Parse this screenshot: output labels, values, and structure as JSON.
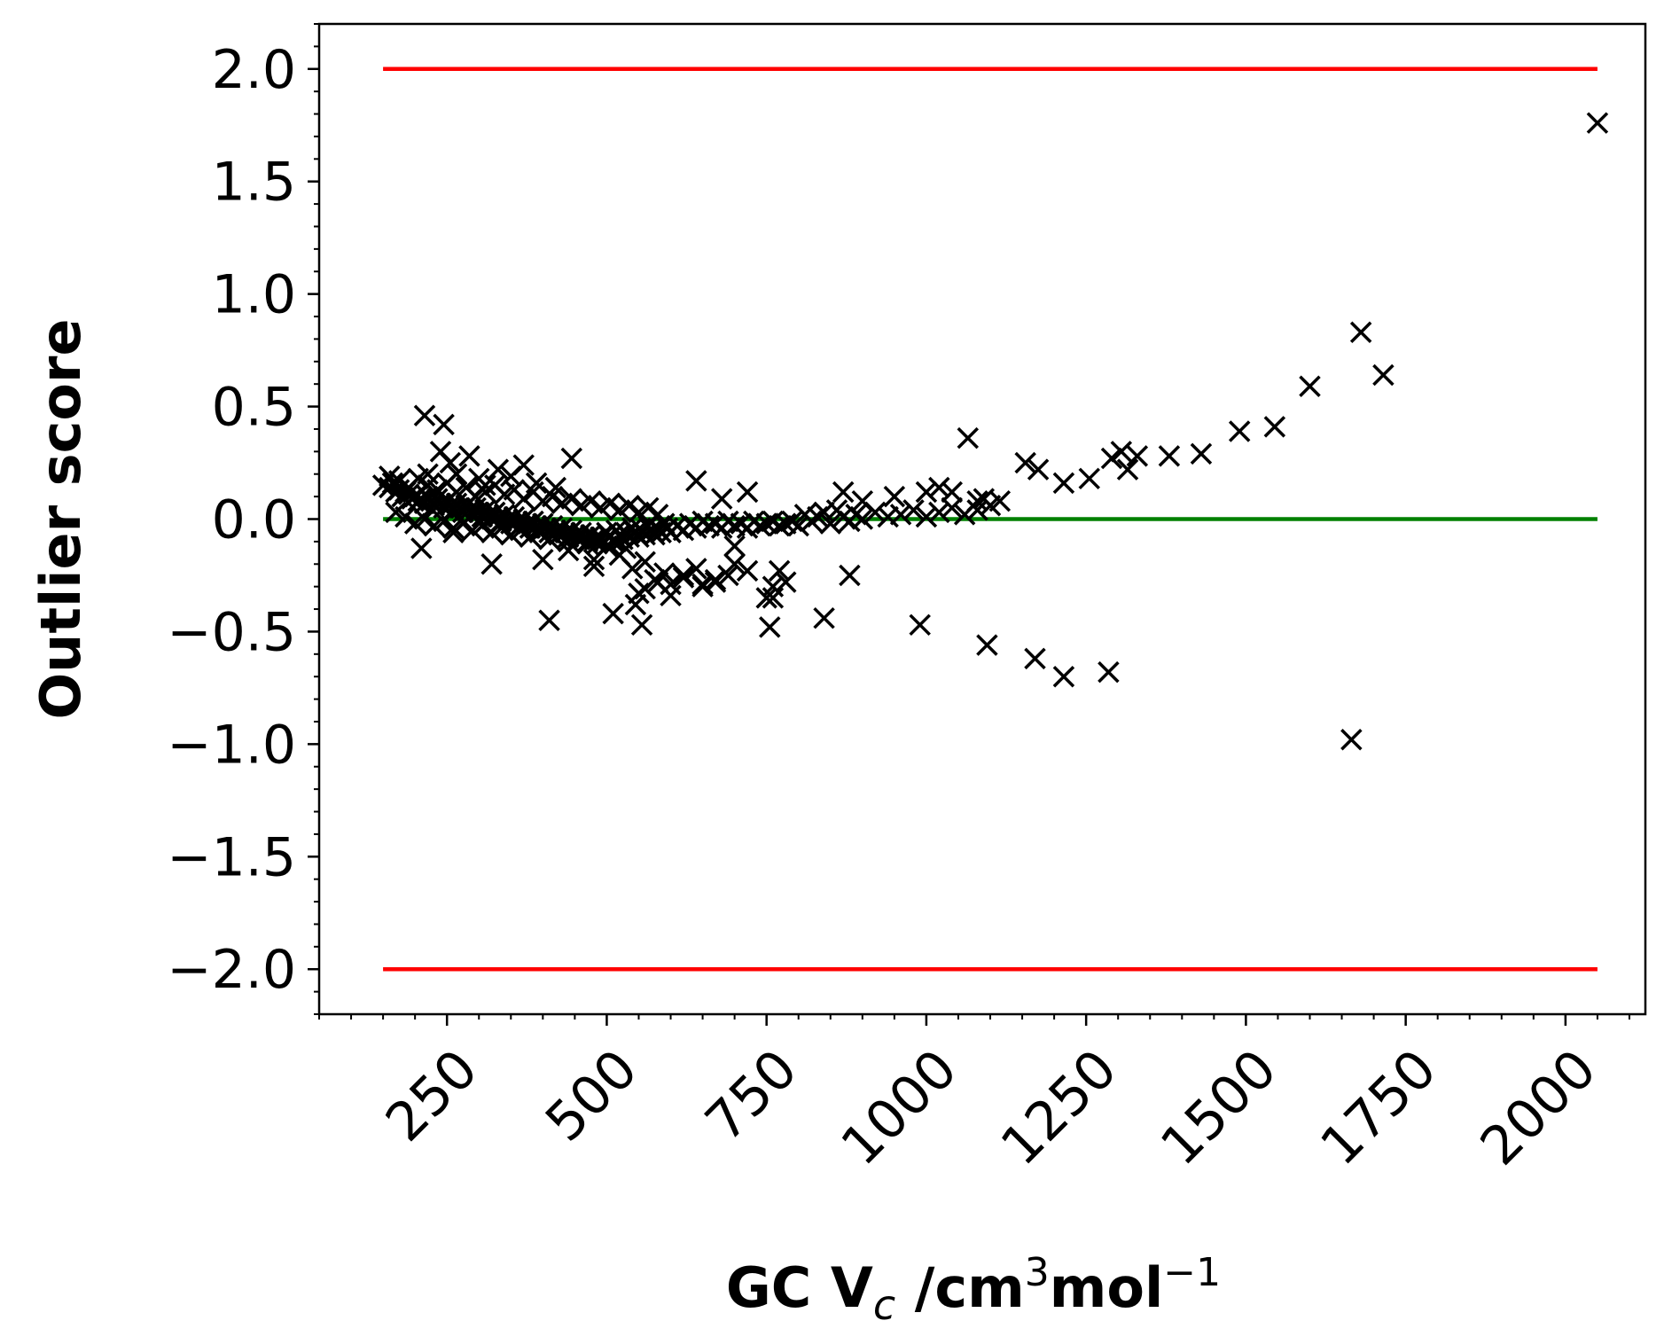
{
  "chart_data": {
    "type": "scatter",
    "xlabel": {
      "prefix": "GC V",
      "subscript": "c",
      "middle": " /cm",
      "sup1": "3",
      "unit2": "mol",
      "sup2": "−1"
    },
    "ylabel": "Outlier score",
    "xlim": [
      50,
      2125
    ],
    "ylim": [
      -2.2,
      2.2
    ],
    "x_ticks": [
      250,
      500,
      750,
      1000,
      1250,
      1500,
      1750,
      2000
    ],
    "x_tick_labels": [
      "250",
      "500",
      "750",
      "1000",
      "1250",
      "1500",
      "1750",
      "2000"
    ],
    "x_minor_step": 50,
    "y_ticks": [
      -2.0,
      -1.5,
      -1.0,
      -0.5,
      0.0,
      0.5,
      1.0,
      1.5,
      2.0
    ],
    "y_tick_labels": [
      "−2.0",
      "−1.5",
      "−1.0",
      "−0.5",
      "0.0",
      "0.5",
      "1.0",
      "1.5",
      "2.0"
    ],
    "y_minor_step": 0.1,
    "grid": false,
    "marker": "x",
    "colors": {
      "points": "#000000",
      "limit_lines": "#ff0000",
      "zero_line": "#008000"
    },
    "reference_lines": [
      {
        "y": 2.0,
        "x": [
          150,
          2050
        ],
        "color": "#ff0000"
      },
      {
        "y": -2.0,
        "x": [
          150,
          2050
        ],
        "color": "#ff0000"
      },
      {
        "y": 0.0,
        "x": [
          150,
          2050
        ],
        "color": "#008000"
      }
    ],
    "series": [
      {
        "x": [
          150,
          160,
          165,
          170,
          175,
          180,
          185,
          190,
          195,
          200,
          205,
          210,
          215,
          220,
          225,
          230,
          235,
          240,
          245,
          250,
          255,
          260,
          265,
          270,
          275,
          280,
          285,
          290,
          295,
          300,
          305,
          310,
          315,
          320,
          325,
          330,
          335,
          340,
          345,
          350,
          355,
          360,
          365,
          370,
          375,
          380,
          385,
          390,
          395,
          400,
          405,
          410,
          415,
          420,
          425,
          430,
          435,
          440,
          445,
          450,
          455,
          460,
          465,
          470,
          475,
          480,
          485,
          490,
          495,
          500,
          505,
          510,
          515,
          520,
          525,
          530,
          535,
          540,
          545,
          550,
          555,
          560,
          565,
          570,
          575,
          580,
          585,
          590,
          595,
          600,
          610,
          620,
          630,
          640,
          650,
          660,
          670,
          680,
          690,
          700,
          710,
          720,
          730,
          740,
          750,
          760,
          770,
          780,
          790,
          800,
          810,
          820,
          830,
          840,
          850,
          860,
          870,
          880,
          890,
          900,
          920,
          940,
          960,
          980,
          1000,
          1020,
          1040,
          1060,
          1080,
          1100,
          160,
          175,
          190,
          205,
          220,
          235,
          250,
          265,
          280,
          295,
          310,
          325,
          340,
          355,
          370,
          385,
          400,
          415,
          430,
          445,
          460,
          475,
          490,
          505,
          520,
          535,
          550,
          565,
          580,
          170,
          185,
          200,
          215,
          230,
          245,
          260,
          275,
          290,
          305,
          320,
          335,
          350,
          365,
          380,
          395,
          410,
          425,
          440,
          455,
          470,
          485,
          500,
          515,
          530,
          215,
          245,
          240,
          255,
          265,
          285,
          300,
          310,
          330,
          350,
          370,
          390,
          420,
          445,
          210,
          260,
          320,
          400,
          440,
          480,
          520,
          540,
          560,
          575,
          590,
          600,
          620,
          640,
          650,
          670,
          690,
          700,
          720,
          750,
          760,
          770,
          780,
          220,
          410,
          480,
          510,
          545,
          550,
          555,
          560,
          580,
          600,
          620,
          650,
          670,
          700,
          755,
          760,
          840,
          880,
          990,
          1095,
          1170,
          1215,
          1285,
          1665,
          640,
          680,
          720,
          870,
          900,
          950,
          1000,
          1020,
          1040,
          1065,
          1090,
          1080,
          1115,
          1155,
          1175,
          1215,
          1255,
          1290,
          1305,
          1315,
          1330,
          1380,
          1430,
          1490,
          1545,
          1600,
          1680,
          1715,
          2050
        ],
        "y": [
          0.15,
          0.14,
          0.16,
          0.12,
          0.13,
          0.1,
          0.12,
          0.11,
          0.09,
          0.1,
          0.08,
          0.09,
          0.07,
          0.1,
          0.08,
          0.06,
          0.09,
          0.07,
          0.05,
          0.08,
          0.06,
          0.04,
          0.07,
          0.05,
          0.03,
          0.06,
          0.04,
          0.02,
          0.05,
          0.03,
          0.01,
          0.04,
          0.02,
          0.0,
          0.03,
          0.01,
          -0.01,
          0.02,
          0.0,
          -0.02,
          0.01,
          -0.01,
          -0.03,
          0.0,
          -0.02,
          -0.04,
          -0.01,
          -0.03,
          -0.05,
          -0.02,
          -0.04,
          -0.06,
          -0.03,
          -0.05,
          -0.07,
          -0.04,
          -0.06,
          -0.08,
          -0.05,
          -0.07,
          -0.09,
          -0.06,
          -0.08,
          -0.1,
          -0.07,
          -0.09,
          -0.11,
          -0.08,
          -0.1,
          -0.06,
          -0.08,
          -0.1,
          -0.05,
          -0.07,
          -0.09,
          -0.06,
          -0.08,
          -0.04,
          -0.06,
          -0.08,
          -0.05,
          -0.07,
          -0.03,
          -0.05,
          -0.07,
          -0.04,
          -0.06,
          -0.02,
          -0.04,
          -0.06,
          -0.03,
          -0.05,
          -0.02,
          -0.04,
          -0.01,
          -0.03,
          -0.02,
          -0.04,
          -0.01,
          -0.03,
          -0.02,
          -0.04,
          -0.01,
          -0.03,
          -0.02,
          -0.01,
          -0.03,
          -0.02,
          -0.01,
          -0.03,
          0.02,
          -0.01,
          0.01,
          0.03,
          -0.02,
          0.04,
          0.01,
          -0.01,
          0.02,
          0.0,
          0.03,
          0.01,
          0.02,
          0.04,
          0.01,
          0.03,
          0.05,
          0.02,
          0.04,
          0.06,
          0.19,
          0.17,
          0.14,
          0.18,
          0.15,
          0.13,
          0.16,
          0.12,
          0.14,
          0.1,
          0.12,
          0.15,
          0.11,
          0.13,
          0.09,
          0.12,
          0.08,
          0.1,
          0.07,
          0.09,
          0.06,
          0.08,
          0.05,
          0.07,
          0.04,
          0.06,
          0.03,
          0.05,
          0.02,
          0.03,
          0.01,
          -0.02,
          0.0,
          -0.03,
          -0.01,
          -0.04,
          -0.02,
          -0.05,
          -0.03,
          -0.06,
          -0.04,
          -0.07,
          -0.05,
          -0.08,
          -0.06,
          -0.09,
          -0.07,
          -0.1,
          -0.08,
          -0.11,
          -0.09,
          -0.12,
          -0.1,
          -0.13,
          0.46,
          0.42,
          0.3,
          0.25,
          0.2,
          0.28,
          0.18,
          0.15,
          0.22,
          0.19,
          0.24,
          0.16,
          0.14,
          0.27,
          -0.13,
          -0.06,
          -0.2,
          -0.18,
          -0.14,
          -0.21,
          -0.16,
          -0.22,
          -0.19,
          -0.27,
          -0.24,
          -0.29,
          -0.26,
          -0.22,
          -0.3,
          -0.28,
          -0.25,
          -0.2,
          -0.23,
          -0.35,
          -0.3,
          -0.23,
          -0.28,
          0.2,
          -0.45,
          -0.18,
          -0.42,
          -0.38,
          -0.33,
          -0.47,
          -0.31,
          -0.28,
          -0.34,
          -0.25,
          -0.29,
          -0.27,
          -0.12,
          -0.48,
          -0.35,
          -0.44,
          -0.25,
          -0.47,
          -0.56,
          -0.62,
          -0.7,
          -0.68,
          -0.98,
          0.17,
          0.09,
          0.12,
          0.12,
          0.08,
          0.1,
          0.12,
          0.14,
          0.12,
          0.36,
          0.09,
          0.08,
          0.08,
          0.25,
          0.22,
          0.16,
          0.18,
          0.27,
          0.3,
          0.22,
          0.28,
          0.28,
          0.29,
          0.39,
          0.41,
          0.59,
          0.83,
          0.64,
          1.76
        ]
      }
    ]
  }
}
